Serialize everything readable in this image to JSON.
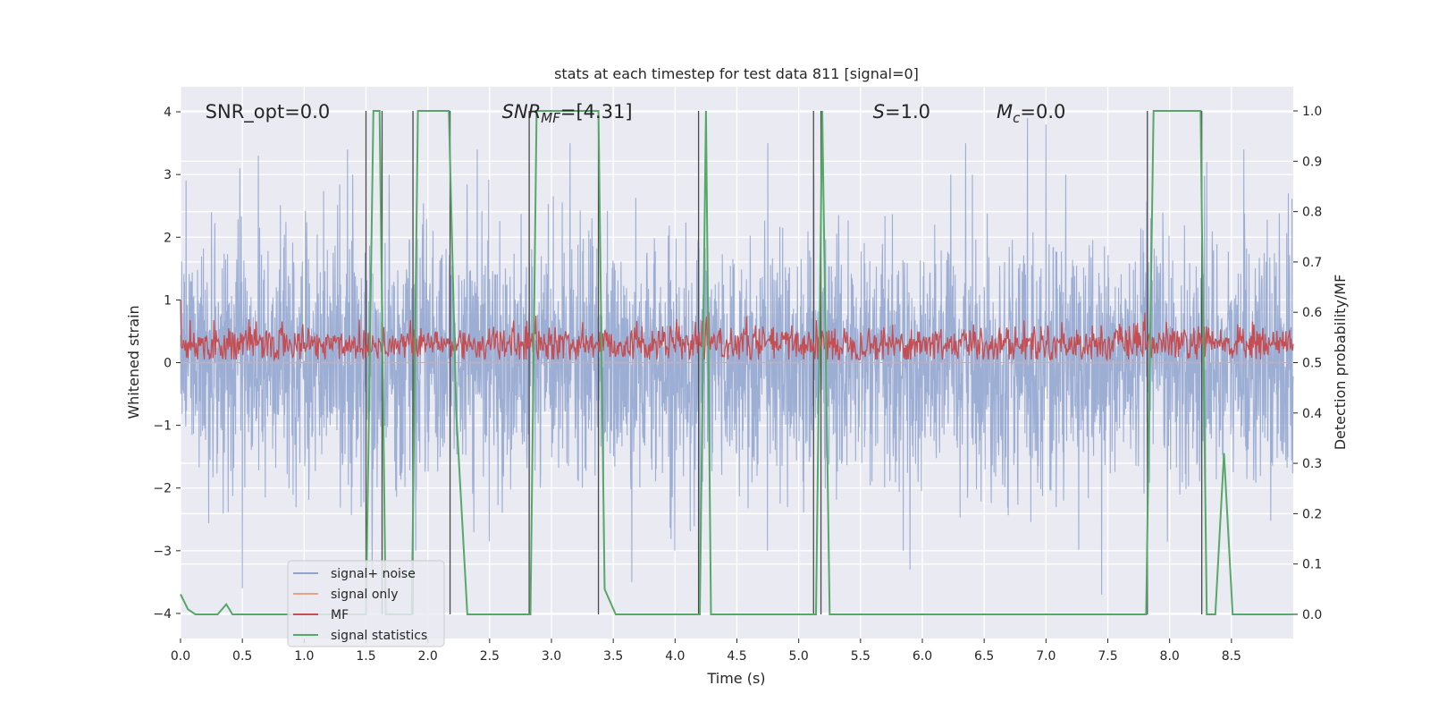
{
  "chart_data": {
    "type": "line",
    "title": "stats at each timestep for test data 811 [signal=0]",
    "xlabel": "Time (s)",
    "ylabel_left": "Whitened strain",
    "ylabel_right": "Detection probability/MF",
    "xlim": [
      0.0,
      9.0
    ],
    "ylim_left": [
      -4.4,
      4.4
    ],
    "ylim_right": [
      -0.048,
      1.048
    ],
    "x_ticks": [
      0.0,
      0.5,
      1.0,
      1.5,
      2.0,
      2.5,
      3.0,
      3.5,
      4.0,
      4.5,
      5.0,
      5.5,
      6.0,
      6.5,
      7.0,
      7.5,
      8.0,
      8.5
    ],
    "x_tick_labels": [
      "0.0",
      "0.5",
      "1.0",
      "1.5",
      "2.0",
      "2.5",
      "3.0",
      "3.5",
      "4.0",
      "4.5",
      "5.0",
      "5.5",
      "6.0",
      "6.5",
      "7.0",
      "7.5",
      "8.0",
      "8.5"
    ],
    "y_left_ticks": [
      4,
      3,
      2,
      1,
      0,
      -1,
      -2,
      -3,
      -4
    ],
    "y_left_tick_labels": [
      "4",
      "3",
      "2",
      "1",
      "0",
      "−1",
      "−2",
      "−3",
      "−4"
    ],
    "y_right_ticks": [
      1.0,
      0.9,
      0.8,
      0.7,
      0.6,
      0.5,
      0.4,
      0.3,
      0.2,
      0.1,
      0.0
    ],
    "y_right_tick_labels": [
      "1.0",
      "0.9",
      "0.8",
      "0.7",
      "0.6",
      "0.5",
      "0.4",
      "0.3",
      "0.2",
      "0.1",
      "0.0"
    ],
    "grid": true,
    "annotations": [
      {
        "key": "snr_opt",
        "text": "SNR_opt=0.0",
        "x": 0.2,
        "y": 4.0
      },
      {
        "key": "snr_mf",
        "text": "SNR_MF=[4.31]",
        "x": 2.6,
        "y": 4.0
      },
      {
        "key": "s",
        "text": "S=1.0",
        "x": 5.6,
        "y": 4.0
      },
      {
        "key": "mc",
        "text": "M_c=0.0",
        "x": 6.6,
        "y": 4.0
      }
    ],
    "legend": {
      "position": "lower-left",
      "entries": [
        {
          "label": "signal+ noise",
          "color": "#8fa3cf"
        },
        {
          "label": "signal only",
          "color": "#e8a586"
        },
        {
          "label": "MF",
          "color": "#c44e52"
        },
        {
          "label": "signal statistics",
          "color": "#55a868"
        }
      ]
    },
    "series": [
      {
        "name": "signal+ noise",
        "color": "#8fa3cf",
        "description": "whitened noise trace, dense, amplitude mostly within ±2.5 with peaks near ±3.9",
        "noise_sigma": 0.95,
        "peak_events": [
          {
            "x": 0.25,
            "y": 2.4
          },
          {
            "x": 0.48,
            "y": 3.1
          },
          {
            "x": 0.5,
            "y": -3.6
          },
          {
            "x": 0.63,
            "y": 3.3
          },
          {
            "x": 1.35,
            "y": 3.4
          },
          {
            "x": 1.55,
            "y": -3.3
          },
          {
            "x": 2.4,
            "y": 3.4
          },
          {
            "x": 3.15,
            "y": 3.5
          },
          {
            "x": 3.65,
            "y": -3.5
          },
          {
            "x": 4.2,
            "y": -3.7
          },
          {
            "x": 4.75,
            "y": 3.5
          },
          {
            "x": 5.9,
            "y": -3.3
          },
          {
            "x": 6.35,
            "y": 3.5
          },
          {
            "x": 6.85,
            "y": 3.9
          },
          {
            "x": 7.0,
            "y": 3.8
          },
          {
            "x": 7.45,
            "y": -3.7
          },
          {
            "x": 8.3,
            "y": 3.2
          },
          {
            "x": 8.6,
            "y": 3.4
          }
        ]
      },
      {
        "name": "signal only",
        "color": "#e8a586",
        "description": "zero signal (no injection)",
        "value": 0.0
      },
      {
        "name": "MF",
        "color": "#c44e52",
        "description": "matched-filter output, dense band between roughly 0.05 and 0.75 on the left axis",
        "baseline": 0.3,
        "band": [
          0.05,
          0.8
        ]
      },
      {
        "name": "signal statistics",
        "color": "#55a868",
        "axis": "right",
        "x": [
          0.0,
          0.06,
          0.12,
          0.3,
          0.37,
          0.42,
          0.6,
          1.5,
          1.56,
          1.61,
          1.66,
          1.87,
          1.92,
          2.17,
          2.23,
          2.32,
          2.83,
          2.88,
          3.38,
          3.43,
          3.52,
          4.2,
          4.25,
          4.29,
          5.14,
          5.19,
          5.25,
          7.81,
          7.87,
          8.25,
          8.3,
          8.37,
          8.44,
          8.51,
          9.0
        ],
        "y": [
          0.04,
          0.01,
          0.0,
          0.0,
          0.02,
          0.0,
          0.0,
          0.0,
          1.0,
          1.0,
          0.0,
          0.0,
          1.0,
          1.0,
          0.4,
          0.0,
          0.0,
          1.0,
          1.0,
          0.05,
          0.0,
          0.0,
          1.0,
          0.0,
          0.0,
          1.0,
          0.0,
          0.0,
          1.0,
          1.0,
          0.0,
          0.0,
          0.32,
          0.0,
          0.0
        ]
      },
      {
        "name": "vertical markers",
        "color": "#4a4a4a",
        "description": "thin dark vertical lines marking detection window edges",
        "x": [
          1.5,
          1.63,
          1.88,
          2.18,
          2.82,
          3.38,
          4.19,
          5.12,
          5.18,
          7.82,
          8.26
        ]
      }
    ]
  }
}
